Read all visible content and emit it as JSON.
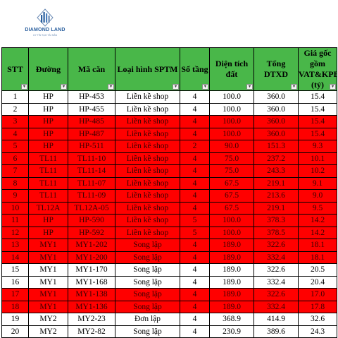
{
  "brand": {
    "name": "DIAMOND LAND",
    "tagline": "UY TÍN TẠO TÀI SẢN"
  },
  "table": {
    "headers": [
      "STT",
      "Đường",
      "Mã căn",
      "Loại hình SPTM",
      "Số tầng",
      "Diện tích đất",
      "Tổng DTXD",
      "Giá gốc gồm VAT&KPBT (tỷ)"
    ],
    "rows": [
      {
        "cells": [
          "1",
          "HP",
          "HP-453",
          "Liền kề shop",
          "4",
          "100.0",
          "360.0",
          "15.4"
        ],
        "highlight": false
      },
      {
        "cells": [
          "2",
          "HP",
          "HP-455",
          "Liền kề shop",
          "4",
          "100.0",
          "360.0",
          "15.4"
        ],
        "highlight": false
      },
      {
        "cells": [
          "3",
          "HP",
          "HP-485",
          "Liền kề shop",
          "4",
          "100.0",
          "360.0",
          "15.4"
        ],
        "highlight": true
      },
      {
        "cells": [
          "4",
          "HP",
          "HP-487",
          "Liền kề shop",
          "4",
          "100.0",
          "360.0",
          "15.4"
        ],
        "highlight": true
      },
      {
        "cells": [
          "5",
          "HP",
          "HP-511",
          "Liền kề shop",
          "2",
          "90.0",
          "151.3",
          "9.3"
        ],
        "highlight": true
      },
      {
        "cells": [
          "6",
          "TL11",
          "TL11-10",
          "Liền kề shop",
          "4",
          "75.0",
          "237.2",
          "10.1"
        ],
        "highlight": true
      },
      {
        "cells": [
          "7",
          "TL11",
          "TL11-14",
          "Liền kề shop",
          "4",
          "75.0",
          "243.3",
          "10.2"
        ],
        "highlight": true
      },
      {
        "cells": [
          "8",
          "TL11",
          "TL11-07",
          "Liền kề shop",
          "4",
          "67.5",
          "219.1",
          "9.1"
        ],
        "highlight": true
      },
      {
        "cells": [
          "9",
          "TL11",
          "TL11-09",
          "Liền kề shop",
          "4",
          "67.5",
          "213.6",
          "9.0"
        ],
        "highlight": true
      },
      {
        "cells": [
          "10",
          "TL12A",
          "TL12A-05",
          "Liền kề shop",
          "4",
          "67.5",
          "219.1",
          "9.5"
        ],
        "highlight": true
      },
      {
        "cells": [
          "11",
          "HP",
          "HP-590",
          "Liền kề shop",
          "5",
          "100.0",
          "378.3",
          "14.2"
        ],
        "highlight": true
      },
      {
        "cells": [
          "12",
          "HP",
          "HP-592",
          "Liền kề shop",
          "5",
          "100.0",
          "378.5",
          "14.2"
        ],
        "highlight": true
      },
      {
        "cells": [
          "13",
          "MY1",
          "MY1-202",
          "Song lập",
          "4",
          "189.0",
          "322.6",
          "18.1"
        ],
        "highlight": true
      },
      {
        "cells": [
          "14",
          "MY1",
          "MY1-200",
          "Song lập",
          "4",
          "189.0",
          "332.4",
          "18.1"
        ],
        "highlight": true
      },
      {
        "cells": [
          "15",
          "MY1",
          "MY1-170",
          "Song lập",
          "4",
          "189.0",
          "322.6",
          "20.5"
        ],
        "highlight": false
      },
      {
        "cells": [
          "16",
          "MY1",
          "MY1-168",
          "Song lập",
          "4",
          "189.0",
          "332.4",
          "20.4"
        ],
        "highlight": false
      },
      {
        "cells": [
          "17",
          "MY1",
          "MY1-138",
          "Song lập",
          "4",
          "189.0",
          "322.6",
          "17.0"
        ],
        "highlight": true
      },
      {
        "cells": [
          "18",
          "MY1",
          "MY1-136",
          "Song lập",
          "4",
          "189.0",
          "332.4",
          "17.8"
        ],
        "highlight": true
      },
      {
        "cells": [
          "19",
          "MY2",
          "MY2-23",
          "Đơn lập",
          "4",
          "368.9",
          "414.9",
          "32.6"
        ],
        "highlight": false
      },
      {
        "cells": [
          "20",
          "MY2",
          "MY2-82",
          "Song lập",
          "4",
          "230.9",
          "389.6",
          "24.3"
        ],
        "highlight": false
      }
    ]
  },
  "colors": {
    "header_green": "#49b749",
    "highlight_red": "#ff0000",
    "brand_blue": "#2a5f9e"
  },
  "icons": {
    "filter_button": "filter-dropdown-icon",
    "logo": "diamond-building-logo-icon"
  }
}
